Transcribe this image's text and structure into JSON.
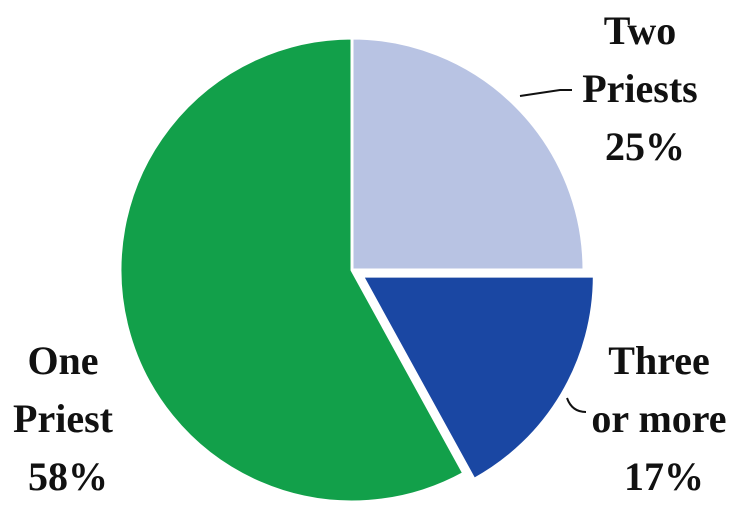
{
  "chart_data": {
    "type": "pie",
    "slices": [
      {
        "name": "Two Priests",
        "value": 25,
        "label_lines": [
          "Two",
          "Priests",
          "25%"
        ],
        "color": "#b8c3e3",
        "exploded": false
      },
      {
        "name": "Three or more",
        "value": 17,
        "label_lines": [
          "Three",
          "or more",
          "17%"
        ],
        "color": "#1a47a3",
        "exploded": true
      },
      {
        "name": "One Priest",
        "value": 58,
        "label_lines": [
          "One",
          "Priest",
          "58%"
        ],
        "color": "#12a04a",
        "exploded": false
      }
    ],
    "start_angle_deg": 0,
    "direction": "clockwise",
    "legend": "none"
  }
}
